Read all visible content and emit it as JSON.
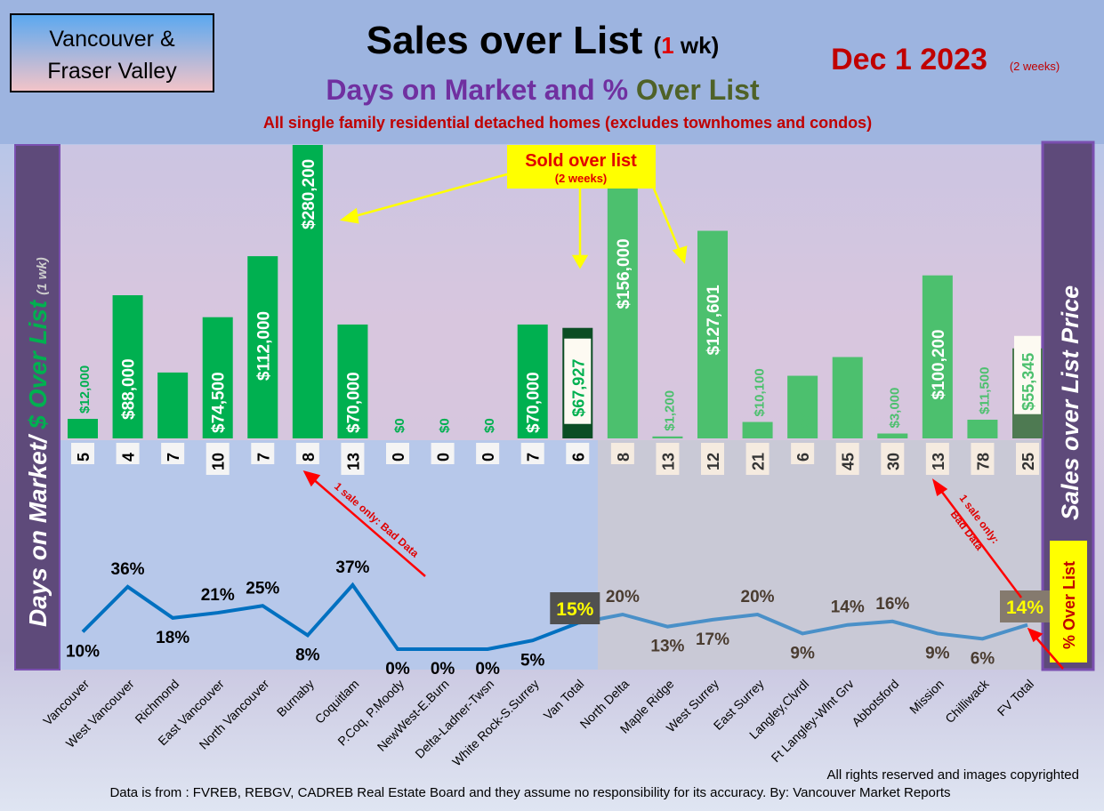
{
  "header": {
    "region_line1": "Vancouver &",
    "region_line2": "Fraser Valley",
    "title_main": "Sales over List ",
    "title_paren_open": "(",
    "title_num": "1",
    "title_paren_close": " wk)",
    "subtitle_part1": "Days on Market and % ",
    "subtitle_part2": "Over List",
    "description": "All single family residential detached homes (excludes townhomes and condos)",
    "date": "Dec 1  2023",
    "date_note": "(2 weeks)"
  },
  "left_axis": {
    "label": "Days on Market/ ",
    "label_green": "$ Over List",
    "note": "(1 wk)"
  },
  "right_axis": {
    "label": "Sales over List Price",
    "pct_label": "% Over List"
  },
  "annotations": {
    "sold_over_list": "Sold over list",
    "sold_over_list_note": "(2 weeks)",
    "bad_data_left": "1 sale only: Bad Data",
    "bad_data_right_1": "1 sale only:",
    "bad_data_right_2": "Bad Data"
  },
  "footer": {
    "copyright": "All rights reserved and  images copyrighted",
    "source": "Data is from : FVREB, REBGV, CADREB Real Estate Board and they assume no responsibility for its accuracy. By: Vancouver Market Reports"
  },
  "colors": {
    "bar_van": "#00b050",
    "bar_fv": "#4cc06e",
    "total_van": "#0b4d24",
    "total_fv": "#4e7a52",
    "line_van": "#0070c0",
    "line_fv": "#4a90c8",
    "title_purple": "#7030a0",
    "red": "#c00000"
  },
  "chart_data": {
    "type": "bar+line",
    "title": "Sales over List (1 wk)",
    "categories": [
      "Vancouver",
      "West Vancouver",
      "Richmond",
      "East Vancouver",
      "North Vancouver",
      "Burnaby",
      "Coquitlam",
      "P.Coq, P.Moody",
      "NewWest-E.Burn",
      "Delta-Ladner-Twsn",
      "White Rock-S.Surrey",
      "Van Total",
      "North Delta",
      "Maple Ridge",
      "West Surrey",
      "East Surrey",
      "Langley,Clvrdl",
      "Ft Langley-Wlnt Grv",
      "Abbotsford",
      "Mission",
      "Chilliwack",
      "FV Total"
    ],
    "series": [
      {
        "name": "$ Over List",
        "values": [
          12000,
          88000,
          40500,
          74500,
          112000,
          280200,
          70000,
          0,
          0,
          0,
          70000,
          67927,
          156000,
          1200,
          127601,
          10100,
          38500,
          50000,
          3000,
          100200,
          11500,
          55345
        ],
        "labels": [
          "$12,000",
          "$88,000",
          "$40,500",
          "$74,500",
          "$112,000",
          "$280,200",
          "$70,000",
          "$0",
          "$0",
          "$0",
          "$70,000",
          "$67,927",
          "$156,000",
          "$1,200",
          "$127,601",
          "$10,100",
          "$38,500",
          "$50,000",
          "$3,000",
          "$100,200",
          "$11,500",
          "$55,345"
        ]
      },
      {
        "name": "Days on Market",
        "values": [
          5,
          4,
          7,
          10,
          7,
          8,
          13,
          0,
          0,
          0,
          7,
          6,
          8,
          13,
          12,
          21,
          6,
          45,
          30,
          13,
          78,
          25
        ]
      },
      {
        "name": "% Over List",
        "values": [
          10,
          36,
          18,
          21,
          25,
          8,
          37,
          0,
          0,
          0,
          5,
          15,
          20,
          13,
          17,
          20,
          9,
          14,
          16,
          9,
          6,
          14
        ],
        "labels": [
          "10%",
          "36%",
          "18%",
          "21%",
          "25%",
          "8%",
          "37%",
          "0%",
          "0%",
          "0%",
          "5%",
          "15%",
          "20%",
          "13%",
          "17%",
          "20%",
          "9%",
          "14%",
          "16%",
          "9%",
          "6%",
          "14%"
        ]
      }
    ]
  }
}
